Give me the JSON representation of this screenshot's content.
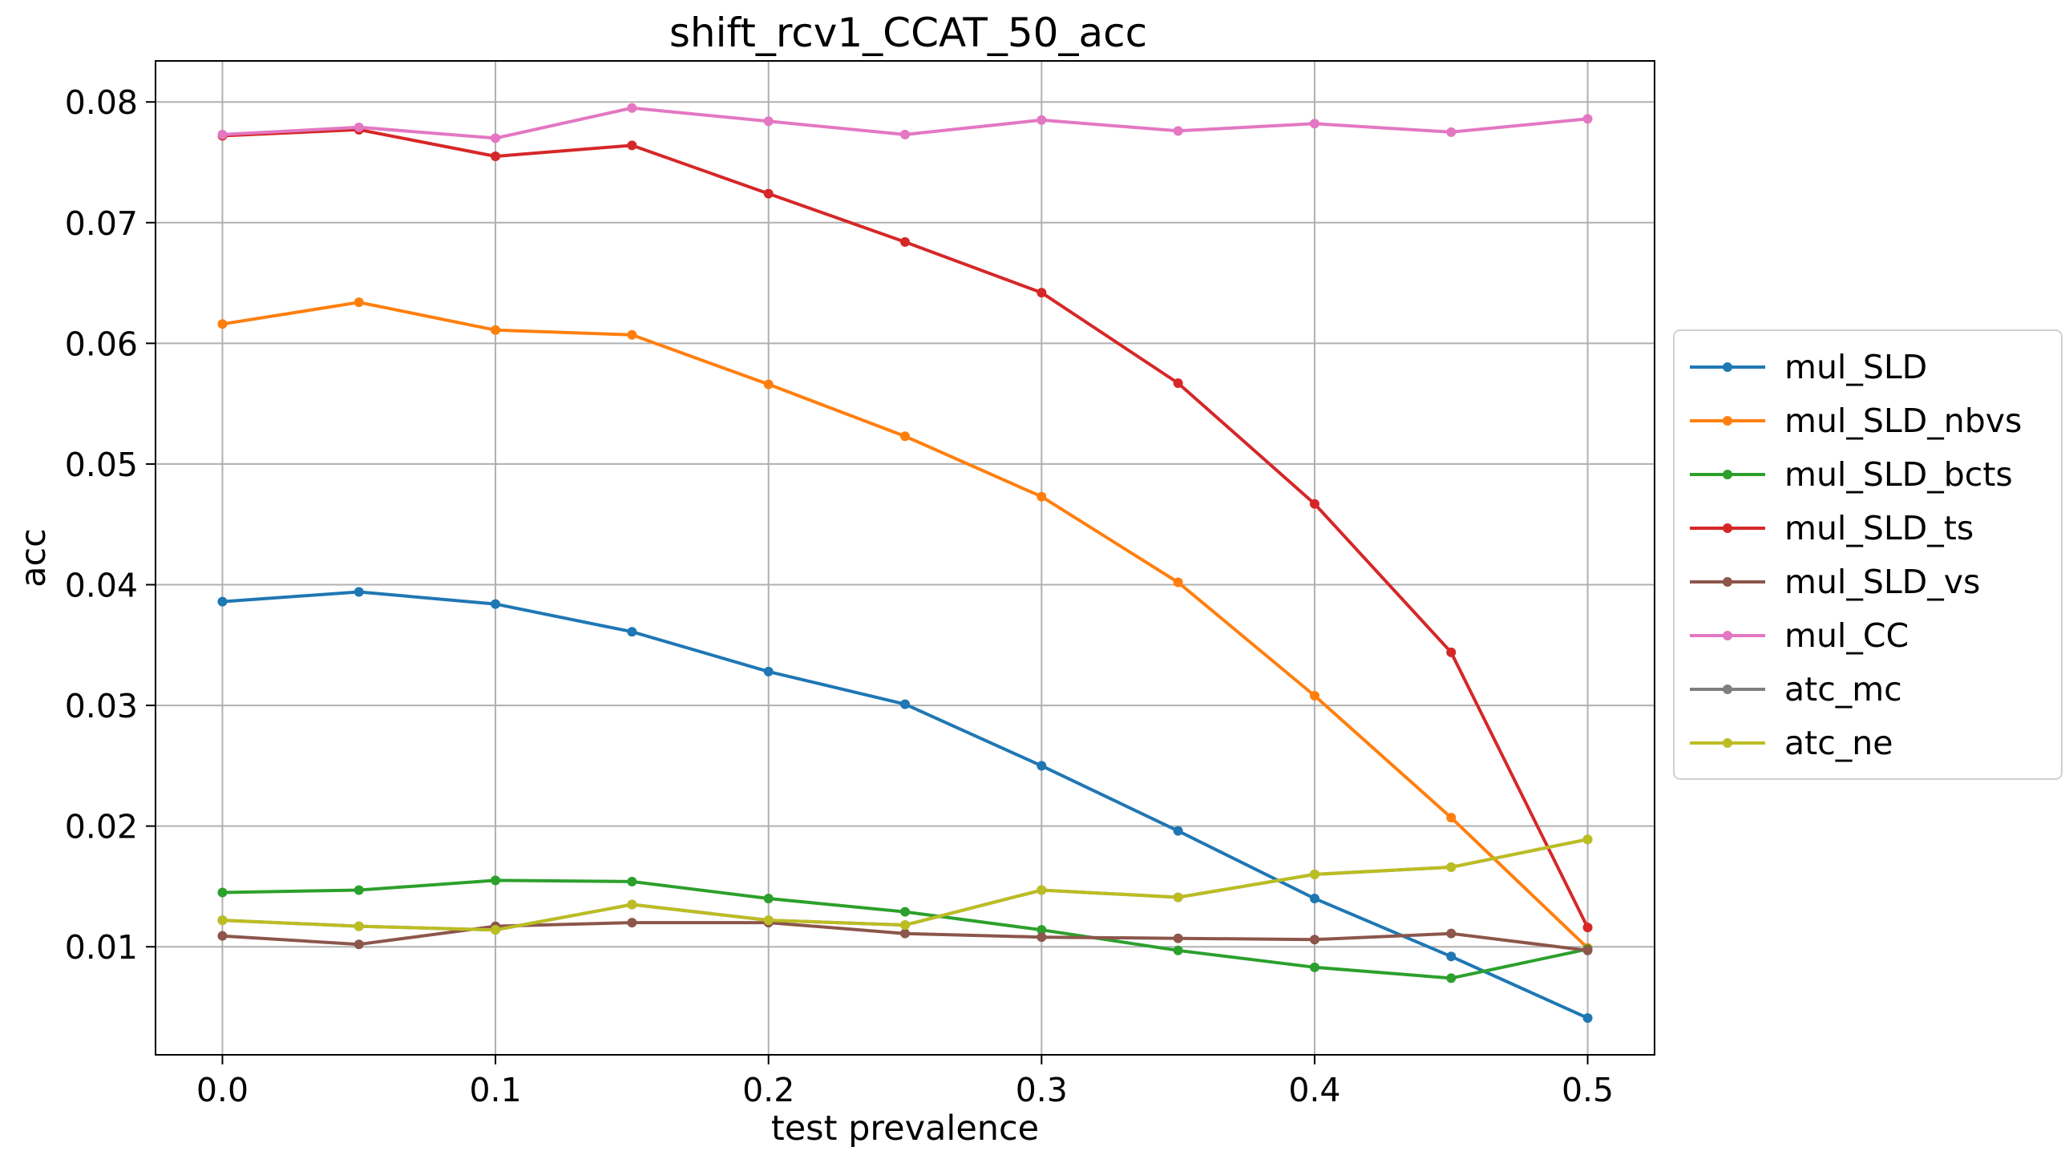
{
  "chart_data": {
    "type": "line",
    "title": "shift_rcv1_CCAT_50_acc",
    "xlabel": "test prevalence",
    "ylabel": "acc",
    "x": [
      0.0,
      0.05,
      0.1,
      0.15,
      0.2,
      0.25,
      0.3,
      0.35,
      0.4,
      0.45,
      0.5
    ],
    "xlim": [
      -0.0245,
      0.5245
    ],
    "ylim": [
      0.00105,
      0.0834
    ],
    "xticks": [
      0.0,
      0.1,
      0.2,
      0.3,
      0.4,
      0.5
    ],
    "xtick_labels": [
      "0.0",
      "0.1",
      "0.2",
      "0.3",
      "0.4",
      "0.5"
    ],
    "yticks": [
      0.01,
      0.02,
      0.03,
      0.04,
      0.05,
      0.06,
      0.07,
      0.08
    ],
    "ytick_labels": [
      "0.01",
      "0.02",
      "0.03",
      "0.04",
      "0.05",
      "0.06",
      "0.07",
      "0.08"
    ],
    "grid": true,
    "legend_position": "right, outside plot",
    "series": [
      {
        "name": "mul_SLD",
        "color": "#1f77b4",
        "values": [
          0.0386,
          0.0394,
          0.0384,
          0.0361,
          0.0328,
          0.0301,
          0.025,
          0.0196,
          0.014,
          0.0092,
          0.0041
        ]
      },
      {
        "name": "mul_SLD_nbvs",
        "color": "#ff7f0e",
        "values": [
          0.0616,
          0.0634,
          0.0611,
          0.0607,
          0.0566,
          0.0523,
          0.0473,
          0.0402,
          0.0308,
          0.0207,
          0.0099
        ]
      },
      {
        "name": "mul_SLD_bcts",
        "color": "#2ca02c",
        "values": [
          0.0145,
          0.0147,
          0.0155,
          0.0154,
          0.014,
          0.0129,
          0.0114,
          0.0097,
          0.0083,
          0.0074,
          0.0098
        ]
      },
      {
        "name": "mul_SLD_ts",
        "color": "#d62728",
        "values": [
          0.0772,
          0.0777,
          0.0755,
          0.0764,
          0.0724,
          0.0684,
          0.0642,
          0.0567,
          0.0467,
          0.0344,
          0.0116
        ]
      },
      {
        "name": "mul_SLD_vs",
        "color": "#8c564b",
        "values": [
          0.0109,
          0.0102,
          0.0117,
          0.012,
          0.012,
          0.0111,
          0.0108,
          0.0107,
          0.0106,
          0.0111,
          0.0097
        ]
      },
      {
        "name": "mul_CC",
        "color": "#e377c2",
        "values": [
          0.0773,
          0.0779,
          0.077,
          0.0795,
          0.0784,
          0.0773,
          0.0785,
          0.0776,
          0.0782,
          0.0775,
          0.0786
        ]
      },
      {
        "name": "atc_mc",
        "color": "#7f7f7f",
        "values": [
          0.0122,
          0.0117,
          0.0114,
          0.0135,
          0.0122,
          0.0118,
          0.0147,
          0.0141,
          0.016,
          0.0166,
          0.0189
        ]
      },
      {
        "name": "atc_ne",
        "color": "#bcbd22",
        "values": [
          0.0122,
          0.0117,
          0.0114,
          0.0135,
          0.0122,
          0.0118,
          0.0147,
          0.0141,
          0.016,
          0.0166,
          0.0189
        ]
      }
    ]
  }
}
